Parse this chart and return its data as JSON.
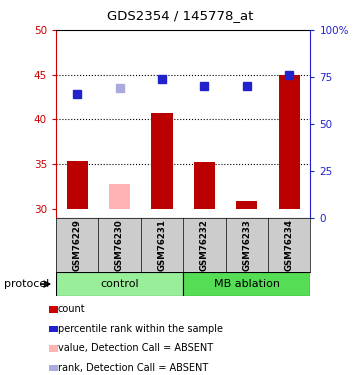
{
  "title": "GDS2354 / 145778_at",
  "samples": [
    "GSM76229",
    "GSM76230",
    "GSM76231",
    "GSM76232",
    "GSM76233",
    "GSM76234"
  ],
  "bar_values": [
    35.3,
    32.7,
    40.7,
    35.2,
    30.8,
    45.0
  ],
  "bar_colors": [
    "#bb0000",
    "#ffb3b3",
    "#bb0000",
    "#bb0000",
    "#bb0000",
    "#bb0000"
  ],
  "rank_values": [
    42.8,
    43.5,
    44.5,
    43.7,
    43.7,
    45.0
  ],
  "rank_colors": [
    "#2222cc",
    "#aaaadd",
    "#2222cc",
    "#2222cc",
    "#2222cc",
    "#2222cc"
  ],
  "ylim_left": [
    29,
    50
  ],
  "ylim_right": [
    0,
    100
  ],
  "yticks_left": [
    30,
    35,
    40,
    45,
    50
  ],
  "yticks_right": [
    0,
    25,
    50,
    75,
    100
  ],
  "ytick_labels_right": [
    "0",
    "25",
    "50",
    "75",
    "100%"
  ],
  "bar_bottom": 30,
  "group_labels": [
    "control",
    "MB ablation"
  ],
  "protocol_label": "protocol",
  "legend_items": [
    {
      "label": "count",
      "color": "#cc0000"
    },
    {
      "label": "percentile rank within the sample",
      "color": "#2222cc"
    },
    {
      "label": "value, Detection Call = ABSENT",
      "color": "#ffb3b3"
    },
    {
      "label": "rank, Detection Call = ABSENT",
      "color": "#aaaadd"
    }
  ],
  "dotted_yticks": [
    35,
    40,
    45
  ],
  "bar_width": 0.5,
  "marker_size": 6,
  "left_axis_color": "#cc0000",
  "right_axis_color": "#2222cc",
  "plot_bg": "#ffffff",
  "label_area_bg": "#cccccc",
  "control_bg": "#99ee99",
  "mb_bg": "#55dd55"
}
